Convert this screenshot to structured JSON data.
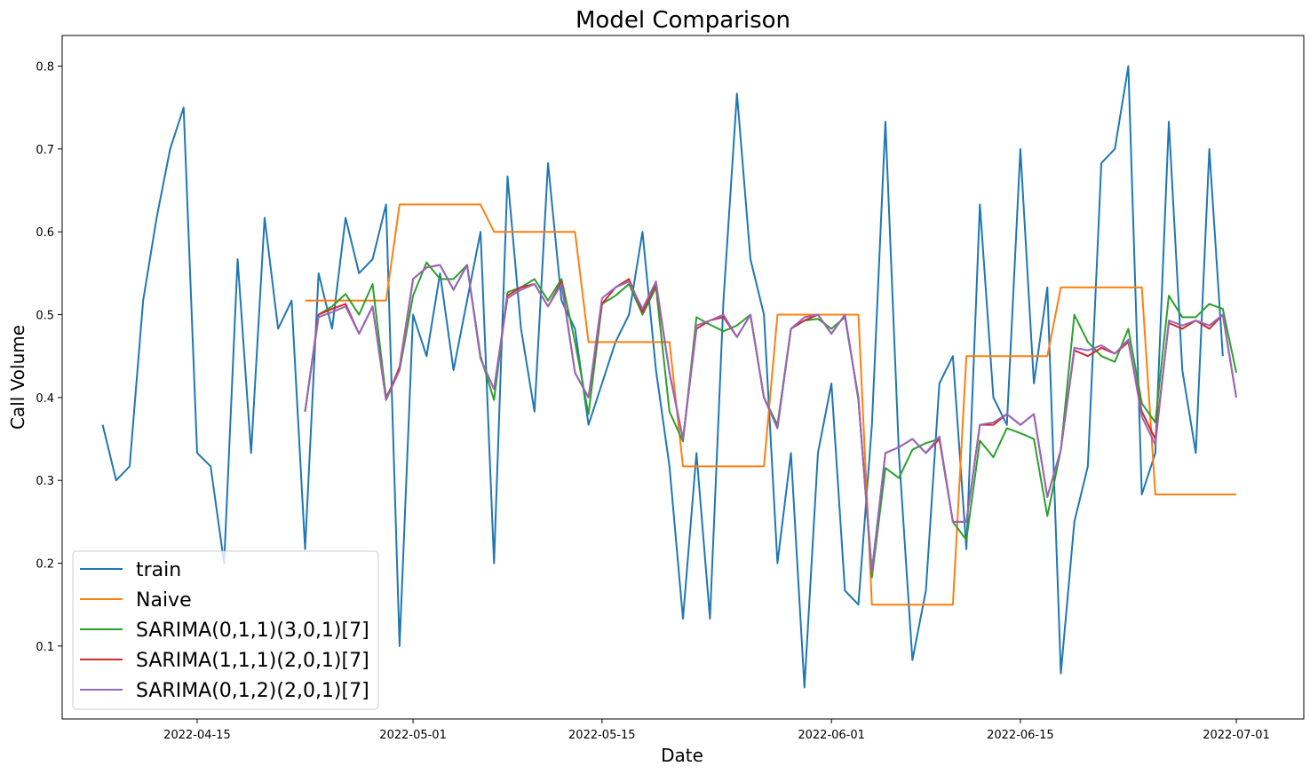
{
  "chart_data": {
    "type": "line",
    "title": "Model Comparison",
    "xlabel": "Date",
    "ylabel": "Call Volume",
    "x_tick_labels": [
      "2022-04-15",
      "2022-05-01",
      "2022-05-15",
      "2022-06-01",
      "2022-06-15",
      "2022-07-01"
    ],
    "y_ticks": [
      0.1,
      0.2,
      0.3,
      0.4,
      0.5,
      0.6,
      0.7,
      0.8
    ],
    "y_tick_labels": [
      "0.1",
      "0.2",
      "0.3",
      "0.4",
      "0.5",
      "0.6",
      "0.7",
      "0.8"
    ],
    "xlim": [
      "2022-04-05",
      "2022-07-06"
    ],
    "ylim": [
      0.012,
      0.837
    ],
    "grid": false,
    "legend_position": "lower-left",
    "x_start_date": "2022-04-08",
    "series": [
      {
        "name": "train",
        "color": "#1f77b4",
        "x_start": "2022-04-08",
        "values": [
          0.367,
          0.3,
          0.317,
          0.517,
          0.617,
          0.7,
          0.75,
          0.333,
          0.317,
          0.2,
          0.567,
          0.333,
          0.617,
          0.483,
          0.517,
          0.217,
          0.55,
          0.483,
          0.617,
          0.55,
          0.567,
          0.633,
          0.1,
          0.5,
          0.45,
          0.55,
          0.433,
          0.517,
          0.6,
          0.2,
          0.667,
          0.483,
          0.383,
          0.683,
          0.517,
          0.483,
          0.367,
          0.417,
          0.467,
          0.5,
          0.6,
          0.433,
          0.317,
          0.133,
          0.333,
          0.133,
          0.517,
          0.767,
          0.567,
          0.5,
          0.2,
          0.333,
          0.05,
          0.333,
          0.417,
          0.167,
          0.15,
          0.367,
          0.733,
          0.333,
          0.083,
          0.167,
          0.417,
          0.45,
          0.217,
          0.633,
          0.4,
          0.367,
          0.7,
          0.417,
          0.533,
          0.067,
          0.25,
          0.317,
          0.683,
          0.7,
          0.8,
          0.283,
          0.333,
          0.733,
          0.433,
          0.333,
          0.7,
          0.45
        ]
      },
      {
        "name": "Naive",
        "color": "#ff7f0e",
        "x_start": "2022-04-23",
        "values": [
          0.517,
          0.517,
          0.517,
          0.517,
          0.517,
          0.517,
          0.517,
          0.633,
          0.633,
          0.633,
          0.633,
          0.633,
          0.633,
          0.633,
          0.6,
          0.6,
          0.6,
          0.6,
          0.6,
          0.6,
          0.6,
          0.467,
          0.467,
          0.467,
          0.467,
          0.467,
          0.467,
          0.467,
          0.317,
          0.317,
          0.317,
          0.317,
          0.317,
          0.317,
          0.317,
          0.5,
          0.5,
          0.5,
          0.5,
          0.5,
          0.5,
          0.5,
          0.15,
          0.15,
          0.15,
          0.15,
          0.15,
          0.15,
          0.15,
          0.45,
          0.45,
          0.45,
          0.45,
          0.45,
          0.45,
          0.45,
          0.533,
          0.533,
          0.533,
          0.533,
          0.533,
          0.533,
          0.533,
          0.283,
          0.283,
          0.283,
          0.283,
          0.283,
          0.283,
          0.283
        ]
      },
      {
        "name": "SARIMA(0,1,1)(3,0,1)[7]",
        "color": "#2ca02c",
        "x_start": "2022-04-23",
        "values": [
          0.383,
          0.5,
          0.51,
          0.525,
          0.5,
          0.537,
          0.4,
          0.433,
          0.523,
          0.563,
          0.543,
          0.543,
          0.56,
          0.45,
          0.397,
          0.527,
          0.533,
          0.543,
          0.517,
          0.543,
          0.467,
          0.38,
          0.513,
          0.523,
          0.537,
          0.5,
          0.533,
          0.383,
          0.347,
          0.497,
          0.488,
          0.48,
          0.487,
          0.5,
          0.4,
          0.367,
          0.483,
          0.493,
          0.495,
          0.483,
          0.497,
          0.4,
          0.183,
          0.315,
          0.303,
          0.337,
          0.345,
          0.35,
          0.25,
          0.228,
          0.348,
          0.328,
          0.363,
          0.357,
          0.35,
          0.257,
          0.337,
          0.5,
          0.467,
          0.45,
          0.443,
          0.483,
          0.393,
          0.37,
          0.523,
          0.497,
          0.497,
          0.513,
          0.507,
          0.43
        ]
      },
      {
        "name": "SARIMA(1,1,1)(2,0,1)[7]",
        "color": "#d62728",
        "x_start": "2022-04-23",
        "values": [
          0.383,
          0.5,
          0.507,
          0.513,
          0.477,
          0.51,
          0.397,
          0.437,
          0.543,
          0.557,
          0.56,
          0.53,
          0.56,
          0.447,
          0.41,
          0.523,
          0.533,
          0.537,
          0.51,
          0.54,
          0.43,
          0.4,
          0.513,
          0.533,
          0.543,
          0.503,
          0.537,
          0.43,
          0.35,
          0.483,
          0.493,
          0.497,
          0.473,
          0.5,
          0.4,
          0.363,
          0.483,
          0.493,
          0.5,
          0.477,
          0.5,
          0.397,
          0.19,
          0.333,
          0.34,
          0.35,
          0.333,
          0.35,
          0.25,
          0.25,
          0.367,
          0.367,
          0.38,
          0.367,
          0.38,
          0.28,
          0.337,
          0.457,
          0.45,
          0.46,
          0.453,
          0.467,
          0.383,
          0.35,
          0.49,
          0.483,
          0.493,
          0.483,
          0.5,
          0.4
        ]
      },
      {
        "name": "SARIMA(0,1,2)(2,0,1)[7]",
        "color": "#9467bd",
        "x_start": "2022-04-23",
        "values": [
          0.383,
          0.497,
          0.503,
          0.51,
          0.477,
          0.51,
          0.397,
          0.433,
          0.543,
          0.557,
          0.56,
          0.53,
          0.56,
          0.447,
          0.41,
          0.52,
          0.53,
          0.537,
          0.51,
          0.537,
          0.43,
          0.4,
          0.52,
          0.533,
          0.54,
          0.507,
          0.54,
          0.43,
          0.35,
          0.487,
          0.493,
          0.5,
          0.473,
          0.5,
          0.4,
          0.363,
          0.483,
          0.497,
          0.5,
          0.477,
          0.5,
          0.397,
          0.19,
          0.333,
          0.34,
          0.35,
          0.333,
          0.353,
          0.25,
          0.25,
          0.367,
          0.37,
          0.38,
          0.367,
          0.38,
          0.28,
          0.337,
          0.46,
          0.457,
          0.463,
          0.453,
          0.47,
          0.377,
          0.343,
          0.493,
          0.487,
          0.493,
          0.487,
          0.5,
          0.4
        ]
      }
    ]
  }
}
